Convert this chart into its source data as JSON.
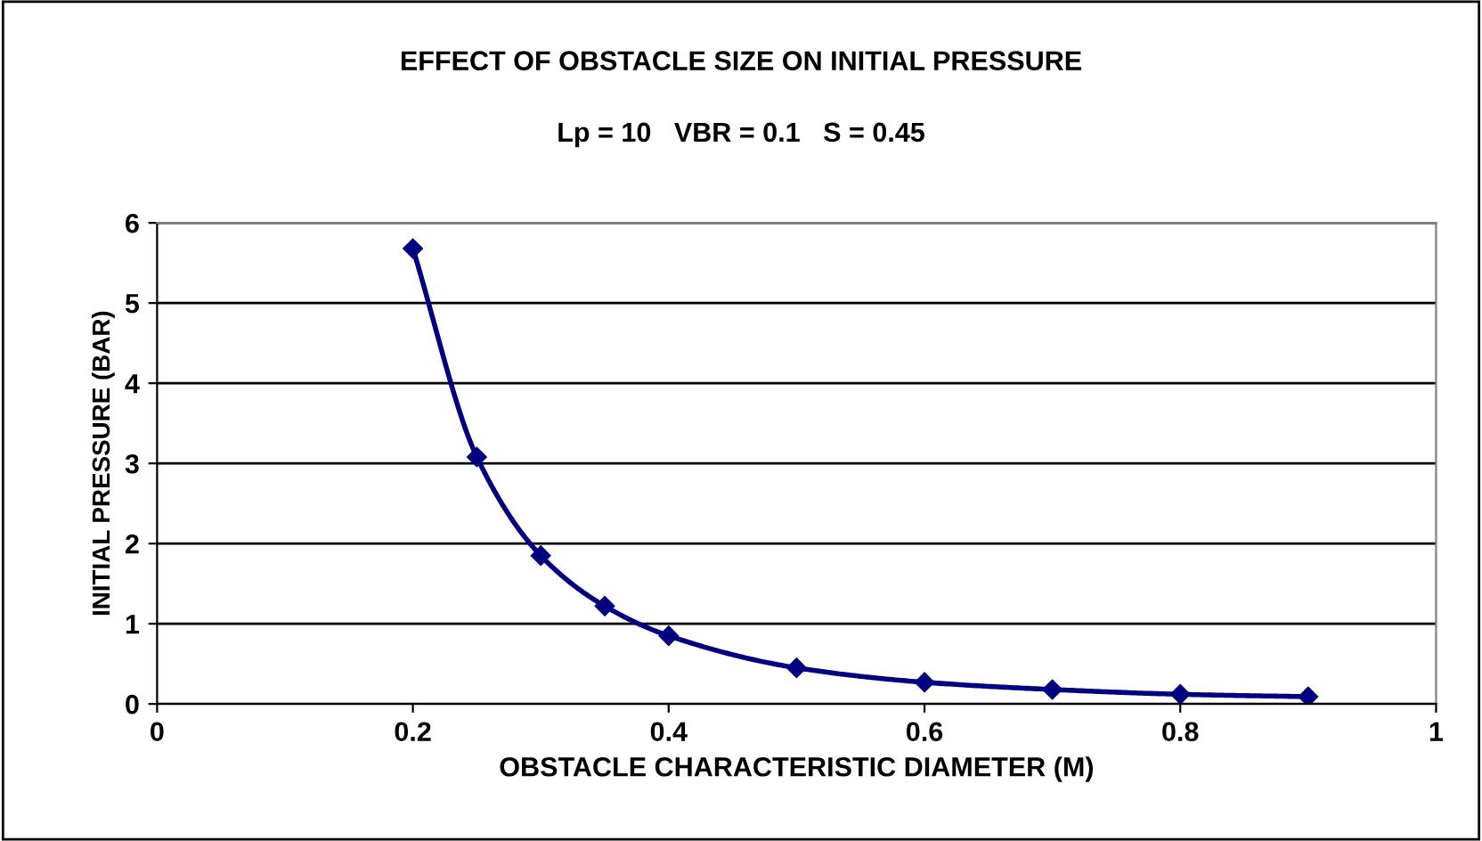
{
  "chart_data": {
    "type": "line",
    "title": "EFFECT OF OBSTACLE SIZE ON INITIAL PRESSURE",
    "subtitle": "Lp = 10   VBR = 0.1   S = 0.45",
    "xlabel": "OBSTACLE CHARACTERISTIC DIAMETER (M)",
    "ylabel": "INITIAL PRESSURE (BAR)",
    "x": [
      0.2,
      0.25,
      0.3,
      0.35,
      0.4,
      0.5,
      0.6,
      0.7,
      0.8,
      0.9
    ],
    "series": [
      {
        "color": "#000080",
        "values": [
          5.68,
          3.08,
          1.85,
          1.22,
          0.85,
          0.45,
          0.27,
          0.18,
          0.12,
          0.09
        ]
      }
    ],
    "xlim": [
      0,
      1
    ],
    "xticks": [
      0,
      0.2,
      0.4,
      0.6,
      0.8,
      1
    ],
    "ylim": [
      0,
      6
    ],
    "yticks": [
      0,
      1,
      2,
      3,
      4,
      5,
      6
    ],
    "grid": "y",
    "marker": "diamond",
    "line_style": "solid",
    "legend": false
  }
}
